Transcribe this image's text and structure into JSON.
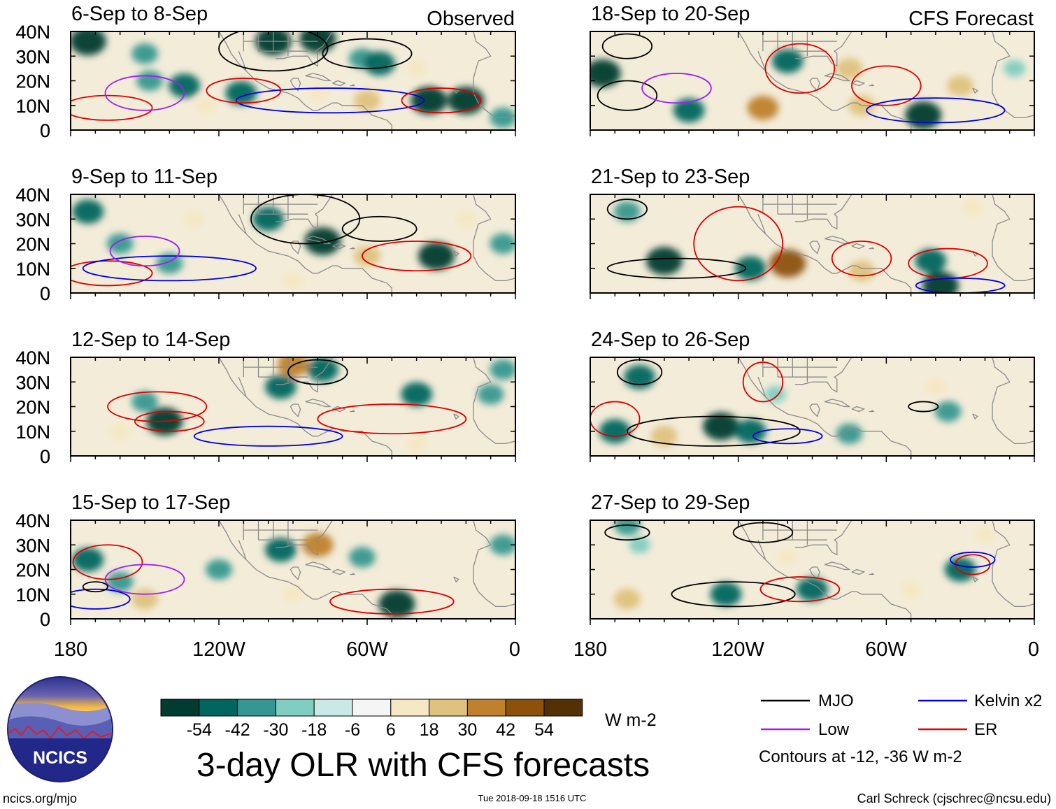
{
  "chart_data": {
    "type": "heatmap",
    "title": "3-day OLR with CFS forecasts",
    "columns": [
      {
        "label": "Observed"
      },
      {
        "label": "CFS Forecast"
      }
    ],
    "panels": [
      {
        "title": "6-Sep to 8-Sep",
        "column": "Observed",
        "blobs": [
          [
            173,
            36,
            -54
          ],
          [
            150,
            31,
            -30
          ],
          [
            148,
            20,
            -30
          ],
          [
            134,
            18,
            -42
          ],
          [
            111,
            15,
            -42
          ],
          [
            98,
            36,
            -54
          ],
          [
            80,
            37,
            -54
          ],
          [
            62,
            29,
            -30
          ],
          [
            55,
            27,
            -42
          ],
          [
            35,
            12,
            -54
          ],
          [
            20,
            12,
            -54
          ],
          [
            5,
            5,
            -30
          ],
          [
            125,
            10,
            18
          ],
          [
            80,
            15,
            18
          ],
          [
            60,
            12,
            30
          ],
          [
            40,
            25,
            18
          ]
        ],
        "contours": [
          {
            "type": "MJO",
            "lon": 98,
            "lat": 33,
            "rx": 22,
            "ry": 9
          },
          {
            "type": "MJO",
            "lon": 60,
            "lat": 31,
            "rx": 18,
            "ry": 6
          },
          {
            "type": "Kelvin x2",
            "lon": 75,
            "lat": 12,
            "rx": 38,
            "ry": 5
          },
          {
            "type": "ER",
            "lon": 165,
            "lat": 9,
            "rx": 18,
            "ry": 5
          },
          {
            "type": "ER",
            "lon": 110,
            "lat": 16,
            "rx": 15,
            "ry": 5
          },
          {
            "type": "ER",
            "lon": 30,
            "lat": 12,
            "rx": 16,
            "ry": 5
          },
          {
            "type": "Low",
            "lon": 150,
            "lat": 15,
            "rx": 16,
            "ry": 7
          }
        ]
      },
      {
        "title": "9-Sep to 11-Sep",
        "column": "Observed",
        "blobs": [
          [
            173,
            33,
            -42
          ],
          [
            160,
            20,
            -30
          ],
          [
            140,
            12,
            -30
          ],
          [
            100,
            30,
            -42
          ],
          [
            78,
            21,
            -54
          ],
          [
            32,
            15,
            -54
          ],
          [
            5,
            20,
            -30
          ],
          [
            60,
            15,
            30
          ],
          [
            130,
            30,
            18
          ],
          [
            90,
            5,
            18
          ],
          [
            20,
            30,
            18
          ]
        ],
        "contours": [
          {
            "type": "MJO",
            "lon": 85,
            "lat": 30,
            "rx": 22,
            "ry": 10
          },
          {
            "type": "MJO",
            "lon": 55,
            "lat": 26,
            "rx": 15,
            "ry": 5
          },
          {
            "type": "ER",
            "lon": 40,
            "lat": 15,
            "rx": 22,
            "ry": 6
          },
          {
            "type": "ER",
            "lon": 165,
            "lat": 8,
            "rx": 18,
            "ry": 5
          },
          {
            "type": "Kelvin x2",
            "lon": 140,
            "lat": 10,
            "rx": 35,
            "ry": 5
          },
          {
            "type": "Low",
            "lon": 150,
            "lat": 17,
            "rx": 14,
            "ry": 6
          }
        ]
      },
      {
        "title": "12-Sep to 14-Sep",
        "column": "Observed",
        "blobs": [
          [
            150,
            22,
            -30
          ],
          [
            142,
            14,
            -54
          ],
          [
            95,
            28,
            -42
          ],
          [
            78,
            35,
            -42
          ],
          [
            40,
            25,
            -42
          ],
          [
            10,
            25,
            -30
          ],
          [
            5,
            35,
            -30
          ],
          [
            90,
            37,
            42
          ],
          [
            40,
            5,
            18
          ],
          [
            160,
            10,
            18
          ]
        ],
        "contours": [
          {
            "type": "MJO",
            "lon": 80,
            "lat": 34,
            "rx": 12,
            "ry": 5
          },
          {
            "type": "ER",
            "lon": 145,
            "lat": 20,
            "rx": 20,
            "ry": 6
          },
          {
            "type": "ER",
            "lon": 140,
            "lat": 14,
            "rx": 14,
            "ry": 4
          },
          {
            "type": "ER",
            "lon": 50,
            "lat": 15,
            "rx": 30,
            "ry": 6
          },
          {
            "type": "Kelvin x2",
            "lon": 100,
            "lat": 8,
            "rx": 30,
            "ry": 4
          }
        ]
      },
      {
        "title": "15-Sep to 17-Sep",
        "column": "Observed",
        "blobs": [
          [
            173,
            24,
            -42
          ],
          [
            160,
            15,
            -30
          ],
          [
            120,
            20,
            -30
          ],
          [
            95,
            28,
            -42
          ],
          [
            62,
            25,
            -30
          ],
          [
            48,
            6,
            -54
          ],
          [
            5,
            30,
            -30
          ],
          [
            80,
            30,
            42
          ],
          [
            150,
            8,
            30
          ],
          [
            90,
            10,
            18
          ]
        ],
        "contours": [
          {
            "type": "ER",
            "lon": 165,
            "lat": 23,
            "rx": 14,
            "ry": 7
          },
          {
            "type": "ER",
            "lon": 50,
            "lat": 7,
            "rx": 25,
            "ry": 5
          },
          {
            "type": "Low",
            "lon": 150,
            "lat": 16,
            "rx": 16,
            "ry": 6
          },
          {
            "type": "Kelvin x2",
            "lon": 170,
            "lat": 8,
            "rx": 14,
            "ry": 4
          },
          {
            "type": "MJO",
            "lon": 170,
            "lat": 13,
            "rx": 5,
            "ry": 2
          }
        ]
      },
      {
        "title": "18-Sep to 20-Sep",
        "column": "CFS Forecast",
        "blobs": [
          [
            175,
            23,
            -54
          ],
          [
            140,
            8,
            -42
          ],
          [
            100,
            28,
            -42
          ],
          [
            45,
            6,
            -54
          ],
          [
            8,
            25,
            -18
          ],
          [
            110,
            9,
            42
          ],
          [
            70,
            10,
            30
          ],
          [
            75,
            25,
            30
          ],
          [
            30,
            18,
            30
          ]
        ],
        "contours": [
          {
            "type": "MJO",
            "lon": 165,
            "lat": 34,
            "rx": 10,
            "ry": 5
          },
          {
            "type": "MJO",
            "lon": 165,
            "lat": 14,
            "rx": 12,
            "ry": 6
          },
          {
            "type": "ER",
            "lon": 95,
            "lat": 25,
            "rx": 14,
            "ry": 10
          },
          {
            "type": "ER",
            "lon": 60,
            "lat": 18,
            "rx": 14,
            "ry": 8
          },
          {
            "type": "Kelvin x2",
            "lon": 40,
            "lat": 8,
            "rx": 28,
            "ry": 5
          },
          {
            "type": "Low",
            "lon": 145,
            "lat": 17,
            "rx": 14,
            "ry": 6
          }
        ]
      },
      {
        "title": "21-Sep to 23-Sep",
        "column": "CFS Forecast",
        "blobs": [
          [
            165,
            33,
            -30
          ],
          [
            150,
            13,
            -54
          ],
          [
            115,
            10,
            -42
          ],
          [
            42,
            13,
            -42
          ],
          [
            38,
            3,
            -54
          ],
          [
            100,
            12,
            54
          ],
          [
            70,
            9,
            30
          ],
          [
            25,
            35,
            18
          ]
        ],
        "contours": [
          {
            "type": "MJO",
            "lon": 165,
            "lat": 34,
            "rx": 8,
            "ry": 4
          },
          {
            "type": "MJO",
            "lon": 145,
            "lat": 10,
            "rx": 28,
            "ry": 4
          },
          {
            "type": "ER",
            "lon": 120,
            "lat": 20,
            "rx": 18,
            "ry": 15
          },
          {
            "type": "ER",
            "lon": 70,
            "lat": 14,
            "rx": 12,
            "ry": 7
          },
          {
            "type": "ER",
            "lon": 35,
            "lat": 12,
            "rx": 16,
            "ry": 6
          },
          {
            "type": "Kelvin x2",
            "lon": 30,
            "lat": 3,
            "rx": 18,
            "ry": 3
          }
        ]
      },
      {
        "title": "24-Sep to 26-Sep",
        "column": "CFS Forecast",
        "blobs": [
          [
            160,
            32,
            -42
          ],
          [
            170,
            10,
            -42
          ],
          [
            127,
            12,
            -54
          ],
          [
            115,
            10,
            -42
          ],
          [
            105,
            25,
            -18
          ],
          [
            75,
            9,
            -30
          ],
          [
            35,
            18,
            -30
          ],
          [
            150,
            8,
            30
          ],
          [
            40,
            28,
            18
          ]
        ],
        "contours": [
          {
            "type": "MJO",
            "lon": 160,
            "lat": 34,
            "rx": 9,
            "ry": 5
          },
          {
            "type": "MJO",
            "lon": 130,
            "lat": 10,
            "rx": 35,
            "ry": 6
          },
          {
            "type": "MJO",
            "lon": 45,
            "lat": 20,
            "rx": 6,
            "ry": 2
          },
          {
            "type": "ER",
            "lon": 110,
            "lat": 30,
            "rx": 8,
            "ry": 8
          },
          {
            "type": "ER",
            "lon": 170,
            "lat": 15,
            "rx": 10,
            "ry": 7
          },
          {
            "type": "Kelvin x2",
            "lon": 100,
            "lat": 8,
            "rx": 14,
            "ry": 3
          }
        ]
      },
      {
        "title": "27-Sep to 29-Sep",
        "column": "CFS Forecast",
        "blobs": [
          [
            165,
            38,
            -30
          ],
          [
            125,
            10,
            -42
          ],
          [
            90,
            12,
            -42
          ],
          [
            30,
            20,
            -42
          ],
          [
            160,
            30,
            -18
          ],
          [
            100,
            25,
            18
          ],
          [
            165,
            8,
            30
          ],
          [
            50,
            12,
            18
          ],
          [
            20,
            34,
            18
          ]
        ],
        "contours": [
          {
            "type": "MJO",
            "lon": 165,
            "lat": 35,
            "rx": 9,
            "ry": 3
          },
          {
            "type": "MJO",
            "lon": 122,
            "lat": 10,
            "rx": 25,
            "ry": 5
          },
          {
            "type": "MJO",
            "lon": 110,
            "lat": 35,
            "rx": 12,
            "ry": 4
          },
          {
            "type": "ER",
            "lon": 95,
            "lat": 12,
            "rx": 16,
            "ry": 5
          },
          {
            "type": "ER",
            "lon": 25,
            "lat": 22,
            "rx": 7,
            "ry": 4
          },
          {
            "type": "Kelvin x2",
            "lon": 25,
            "lat": 24,
            "rx": 9,
            "ry": 3
          }
        ]
      }
    ],
    "y_ticks": [
      "40N",
      "30N",
      "20N",
      "10N",
      "0"
    ],
    "y_range": [
      0,
      40
    ],
    "x_ticks": [
      "180",
      "120W",
      "60W",
      "0"
    ],
    "x_range_deg_west": [
      180,
      0
    ],
    "colorbar": {
      "unit": "W m-2",
      "tick_labels": [
        "-54",
        "-42",
        "-30",
        "-18",
        "-6",
        "6",
        "18",
        "30",
        "42",
        "54"
      ],
      "colors": [
        "#003c30",
        "#01665e",
        "#35978f",
        "#80cdc1",
        "#c7eae5",
        "#f5f5f5",
        "#f6e8c3",
        "#dfc27d",
        "#bf812d",
        "#8c510a",
        "#543005"
      ]
    },
    "legend": [
      {
        "label": "MJO",
        "color": "#000000"
      },
      {
        "label": "Kelvin x2",
        "color": "#0000dd"
      },
      {
        "label": "Low",
        "color": "#a020f0"
      },
      {
        "label": "ER",
        "color": "#dd0000"
      }
    ],
    "contour_note": "Contours at -12, -36 W m-2"
  },
  "logo": {
    "text": "NCICS"
  },
  "footer": {
    "url": "ncics.org/mjo",
    "timestamp": "Tue 2018-09-18 1516 UTC",
    "credit": "Carl Schreck (cjschrec@ncsu.edu)"
  }
}
